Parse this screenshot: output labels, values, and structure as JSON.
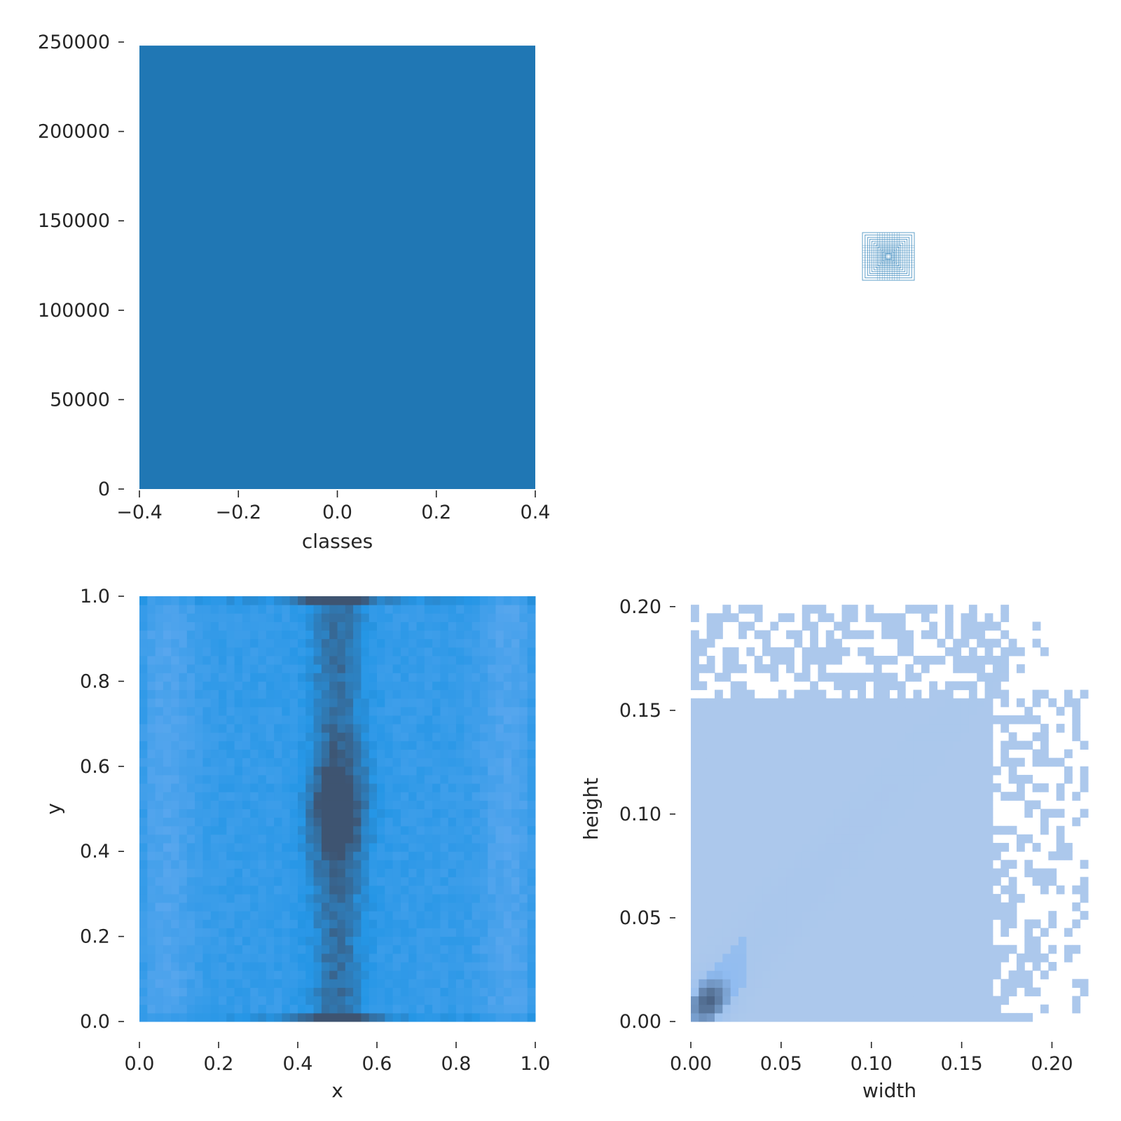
{
  "chart_data": [
    {
      "id": "classes",
      "type": "bar",
      "xlabel": "classes",
      "ylabel": "",
      "xlim": [
        -0.4,
        0.4
      ],
      "ylim": [
        0,
        250000
      ],
      "xticks": [
        "-0.4",
        "-0.2",
        "0.0",
        "0.2",
        "0.4"
      ],
      "yticks": [
        "0",
        "50000",
        "100000",
        "150000",
        "200000",
        "250000"
      ],
      "bars": [
        {
          "x0": -0.4,
          "x1": 0.4,
          "value": 248000
        }
      ],
      "color": "#2077b4"
    },
    {
      "id": "boxes",
      "type": "other",
      "description": "",
      "color": "#2077b4",
      "box_sizes": [
        0.1,
        0.14,
        0.2,
        0.26,
        0.32,
        0.4,
        0.48,
        0.56,
        0.64,
        0.72,
        0.8,
        0.9,
        1.0
      ]
    },
    {
      "id": "xy",
      "type": "heatmap",
      "xlabel": "x",
      "ylabel": "y",
      "xlim": [
        0,
        1
      ],
      "ylim": [
        0,
        1
      ],
      "xticks": [
        "0.0",
        "0.2",
        "0.4",
        "0.6",
        "0.8",
        "1.0"
      ],
      "yticks": [
        "0.0",
        "0.2",
        "0.4",
        "0.6",
        "0.8",
        "1.0"
      ],
      "bins": 50,
      "colors": {
        "low": "#5aa7ee",
        "mid": "#2596e6",
        "high": "#3e5471"
      },
      "peak": {
        "x": 0.5,
        "y": 0.5
      }
    },
    {
      "id": "wh",
      "type": "heatmap",
      "xlabel": "width",
      "ylabel": "height",
      "xlim": [
        0,
        0.22
      ],
      "ylim": [
        0,
        0.205
      ],
      "xticks": [
        "0.00",
        "0.05",
        "0.10",
        "0.15",
        "0.20"
      ],
      "yticks": [
        "0.00",
        "0.05",
        "0.10",
        "0.15",
        "0.20"
      ],
      "bins": 50,
      "colors": {
        "low": "#acc8ec",
        "mid": "#8fbbf0",
        "high": "#3e5471"
      },
      "dense_region": {
        "width_max": 0.167,
        "height_max": 0.155
      },
      "peak": {
        "width": 0.01,
        "height": 0.01
      }
    }
  ]
}
